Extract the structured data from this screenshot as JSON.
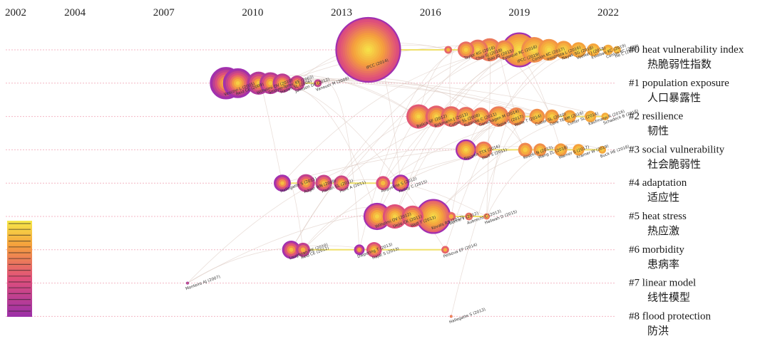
{
  "chart_data": {
    "type": "timeline",
    "title": "",
    "x_axis": {
      "years": [
        2002,
        2004,
        2007,
        2010,
        2013,
        2016,
        2019,
        2022
      ],
      "range": [
        2002,
        2022
      ]
    },
    "clusters": [
      {
        "id": 0,
        "label": "#0 heat vulnerability index",
        "label_zh": "热脆弱性指数"
      },
      {
        "id": 1,
        "label": "#1 population exposure",
        "label_zh": "人口暴露性"
      },
      {
        "id": 2,
        "label": "#2 resilience",
        "label_zh": "韧性"
      },
      {
        "id": 3,
        "label": "#3 social vulnerability",
        "label_zh": "社会脆弱性"
      },
      {
        "id": 4,
        "label": "#4 adaptation",
        "label_zh": "适应性"
      },
      {
        "id": 5,
        "label": "#5 heat stress",
        "label_zh": "热应激"
      },
      {
        "id": 6,
        "label": "#6 morbidity",
        "label_zh": "患病率"
      },
      {
        "id": 7,
        "label": "#7 linear model",
        "label_zh": "线性模型"
      },
      {
        "id": 8,
        "label": "#8 flood protection",
        "label_zh": "防洪"
      }
    ],
    "nodes": [
      {
        "c": 0,
        "year": 2013.9,
        "size": 5.0,
        "burst": true,
        "label": "IPCC (2014)"
      },
      {
        "c": 0,
        "year": 2016.6,
        "size": 0.6,
        "label": ""
      },
      {
        "c": 0,
        "year": 2017.2,
        "size": 1.3,
        "label": "Taylor KG (2018)"
      },
      {
        "c": 0,
        "year": 2017.6,
        "size": 1.6,
        "label": "Choi SJ (2018)"
      },
      {
        "c": 0,
        "year": 2018.0,
        "size": 1.8,
        "label": "Bao JG (2015)"
      },
      {
        "c": 0,
        "year": 2018.5,
        "size": 1.5,
        "label": "Estoque RC (2018)"
      },
      {
        "c": 0,
        "year": 2019.0,
        "size": 2.6,
        "burst": true,
        "label": "IPCC (2019)"
      },
      {
        "c": 0,
        "year": 2019.5,
        "size": 2.0,
        "label": "Conlon KC (2017)"
      },
      {
        "c": 0,
        "year": 2020.0,
        "size": 1.7,
        "label": "Inostroza L (2016)"
      },
      {
        "c": 0,
        "year": 2020.5,
        "size": 1.4,
        "label": "Nayak SG (2018)"
      },
      {
        "c": 0,
        "year": 2021.0,
        "size": 1.2,
        "label": "Voelkel J (2018)"
      },
      {
        "c": 0,
        "year": 2021.5,
        "size": 1.0,
        "label": "Esteban KC (2019)"
      },
      {
        "c": 0,
        "year": 2022.0,
        "size": 0.8,
        "label": "Conlon KC (2020)"
      },
      {
        "c": 0,
        "year": 2022.3,
        "size": 0.6,
        "label": "He C (2019)"
      },
      {
        "c": 1,
        "year": 2009.1,
        "size": 2.4,
        "burst": true,
        "label": "Vescovi L (2005)"
      },
      {
        "c": 1,
        "year": 2009.5,
        "size": 2.2,
        "burst": true,
        "label": "Reid CE (2009)"
      },
      {
        "c": 1,
        "year": 2010.2,
        "size": 1.8,
        "label": "Wilhelmi OV (2010)"
      },
      {
        "c": 1,
        "year": 2010.6,
        "size": 1.7,
        "label": "Smoyer-Tomic KE (2003)"
      },
      {
        "c": 1,
        "year": 2011.0,
        "size": 1.5,
        "label": "Harlan SL (2006)"
      },
      {
        "c": 1,
        "year": 2011.5,
        "size": 1.2,
        "label": "Johnson DP (2012)"
      },
      {
        "c": 1,
        "year": 2012.2,
        "size": 0.6,
        "label": "Vanouer M (2008)"
      },
      {
        "c": 2,
        "year": 2015.6,
        "size": 1.9,
        "label": "Balica SF (2012)"
      },
      {
        "c": 2,
        "year": 2016.2,
        "size": 1.7,
        "label": "Birkmann J (2013)"
      },
      {
        "c": 2,
        "year": 2016.7,
        "size": 1.6,
        "label": "Cutter SL (2008)"
      },
      {
        "c": 2,
        "year": 2017.2,
        "size": 1.5,
        "label": "Kuhlicke C (2011)"
      },
      {
        "c": 2,
        "year": 2017.7,
        "size": 1.4,
        "label": "Garschagen M (2014)"
      },
      {
        "c": 2,
        "year": 2018.3,
        "size": 1.6,
        "label": "Tapia C (2017)"
      },
      {
        "c": 2,
        "year": 2018.9,
        "size": 1.4,
        "label": "Welle T (2014)"
      },
      {
        "c": 2,
        "year": 2019.6,
        "size": 1.2,
        "label": "Cutter SL (2010)"
      },
      {
        "c": 2,
        "year": 2020.1,
        "size": 1.1,
        "label": "Core TEAM (2016)"
      },
      {
        "c": 2,
        "year": 2020.7,
        "size": 1.0,
        "label": "Cutter SL (2014)"
      },
      {
        "c": 2,
        "year": 2021.4,
        "size": 0.9,
        "label": "Kaufmann R (2016)"
      },
      {
        "c": 2,
        "year": 2021.9,
        "size": 0.6,
        "label": "Schadeck B (2018)"
      },
      {
        "c": 3,
        "year": 2017.2,
        "size": 1.5,
        "burst": true,
        "label": "Nguyen TTX (2016)"
      },
      {
        "c": 3,
        "year": 2017.8,
        "size": 1.3,
        "label": "Wolf S (2011)"
      },
      {
        "c": 3,
        "year": 2019.2,
        "size": 1.1,
        "label": "Koseki N (2017)"
      },
      {
        "c": 3,
        "year": 2019.7,
        "size": 1.0,
        "label": "Wang ZL (2018)"
      },
      {
        "c": 3,
        "year": 2020.4,
        "size": 1.0,
        "label": "Warner S (2017)"
      },
      {
        "c": 3,
        "year": 2021.0,
        "size": 0.9,
        "label": "Kramer W (2019)"
      },
      {
        "c": 3,
        "year": 2021.8,
        "size": 0.6,
        "label": "Buck HE (2018)"
      },
      {
        "c": 4,
        "year": 2011.0,
        "size": 1.2,
        "burst": true,
        "label": "Hallegatte S (2011)"
      },
      {
        "c": 4,
        "year": 2011.8,
        "size": 1.4,
        "label": "Adger WN (2009)"
      },
      {
        "c": 4,
        "year": 2012.4,
        "size": 1.3,
        "label": "Harlan SL (2011)"
      },
      {
        "c": 4,
        "year": 2013.0,
        "size": 1.2,
        "label": "Hunt A (2011)"
      },
      {
        "c": 4,
        "year": 2014.4,
        "size": 1.1,
        "label": "Augustine S (2012)"
      },
      {
        "c": 4,
        "year": 2015.0,
        "size": 1.2,
        "burst": true,
        "label": "Kelley C (2015)"
      },
      {
        "c": 5,
        "year": 2014.2,
        "size": 2.0,
        "burst": true,
        "label": "Wilhelmi OV (2012)"
      },
      {
        "c": 5,
        "year": 2014.8,
        "size": 1.9,
        "label": "Uejio CK (2011)"
      },
      {
        "c": 5,
        "year": 2015.4,
        "size": 1.7,
        "label": "Wolf T (2013)"
      },
      {
        "c": 5,
        "year": 2016.1,
        "size": 2.6,
        "burst": true,
        "label": "Kovats RS (2012)"
      },
      {
        "c": 5,
        "year": 2016.7,
        "size": 0.7,
        "label": "Bonne V (2012)"
      },
      {
        "c": 5,
        "year": 2017.3,
        "size": 0.6,
        "label": "Aubrecht C (2013)"
      },
      {
        "c": 5,
        "year": 2017.9,
        "size": 0.5,
        "label": "Hallwah D (2015)"
      },
      {
        "c": 6,
        "year": 2011.3,
        "size": 1.3,
        "burst": true,
        "label": "Loughnan ME (2010)"
      },
      {
        "c": 6,
        "year": 2011.7,
        "size": 1.1,
        "label": "Reid CE (2012)"
      },
      {
        "c": 6,
        "year": 2013.6,
        "size": 0.7,
        "burst": true,
        "label": "Diepering T (2013)"
      },
      {
        "c": 6,
        "year": 2014.1,
        "size": 1.2,
        "label": "Hajat S (2013)"
      },
      {
        "c": 6,
        "year": 2016.5,
        "size": 0.6,
        "label": "Petkova EP (2014)"
      },
      {
        "c": 7,
        "year": 2007.8,
        "size": 0.2,
        "label": "Monteiro AJ (2007)"
      },
      {
        "c": 8,
        "year": 2016.7,
        "size": 0.2,
        "label": "Hallegatte S (2013)"
      }
    ],
    "legend": "color gradient by year (purple = earlier, yellow = later)"
  }
}
